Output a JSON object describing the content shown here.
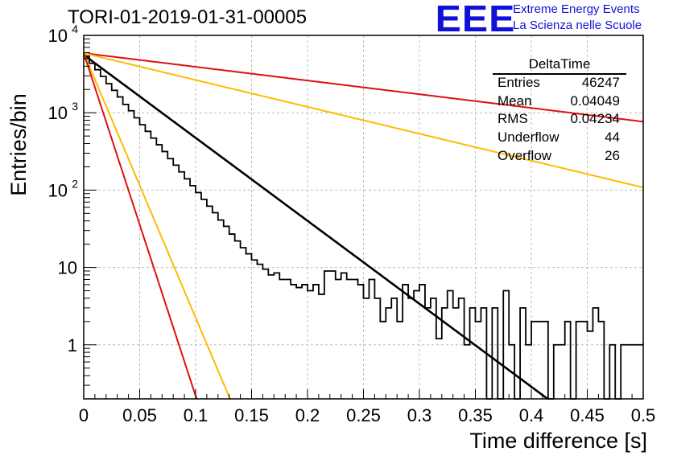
{
  "title": "TORI-01-2019-01-31-00005",
  "logo": {
    "letters": "EEE",
    "line1": "Extreme Energy Events",
    "line2": "La Scienza nelle Scuole"
  },
  "stats_box": {
    "name": "DeltaTime",
    "rows": [
      {
        "label": "Entries",
        "value": "46247"
      },
      {
        "label": "Mean",
        "value": "0.04049"
      },
      {
        "label": "RMS",
        "value": "0.04234"
      },
      {
        "label": "Underflow",
        "value": "44"
      },
      {
        "label": "Overflow",
        "value": "26"
      }
    ]
  },
  "colors": {
    "histogram": "#000000",
    "fit_main": "#000000",
    "curve_red": "#dd1111",
    "curve_yellow": "#ffbb00",
    "grid": "#bbbbbb",
    "logo": "#1010d8"
  },
  "chart_data": {
    "type": "line",
    "xlabel": "Time difference [s]",
    "ylabel": "Entries/bin",
    "xlim": [
      0,
      0.5
    ],
    "ylim": [
      0.2,
      10000
    ],
    "y_scale": "log",
    "grid": true,
    "x_ticks": [
      "0",
      "0.05",
      "0.1",
      "0.15",
      "0.2",
      "0.25",
      "0.3",
      "0.35",
      "0.4",
      "0.45",
      "0.5"
    ],
    "y_ticks": [
      {
        "value": 1,
        "label": "1"
      },
      {
        "value": 10,
        "label": "10"
      },
      {
        "value": 100,
        "label": "10",
        "sup": "2"
      },
      {
        "value": 1000,
        "label": "10",
        "sup": "3"
      },
      {
        "value": 10000,
        "label": "10",
        "sup": "4"
      }
    ],
    "histogram": {
      "bin_width": 0.005,
      "x_start": 0,
      "counts": [
        5400,
        4350,
        3600,
        2950,
        2380,
        1950,
        1600,
        1280,
        1060,
        860,
        700,
        575,
        470,
        385,
        315,
        255,
        210,
        172,
        140,
        114,
        93,
        76,
        62,
        51,
        41,
        34,
        27,
        22,
        18,
        15,
        12.5,
        11,
        9.5,
        8,
        8.5,
        7,
        7,
        6,
        5.5,
        6,
        5,
        6,
        4.5,
        9,
        9,
        7,
        8.5,
        7,
        7,
        6,
        4,
        7,
        4,
        2,
        3,
        4,
        2,
        6,
        4,
        5,
        6,
        3,
        4,
        1.2,
        3,
        5,
        3,
        4,
        1,
        3,
        2,
        3,
        0.2,
        3,
        0.2,
        5,
        1,
        0.2,
        3,
        1,
        2,
        2,
        2,
        0.2,
        1,
        1,
        2,
        0.2,
        2,
        2,
        1.5,
        3,
        2,
        0.2,
        1,
        0.2,
        1,
        1,
        1,
        1
      ]
    },
    "series": [
      {
        "type": "exponential",
        "color": "black",
        "a": 5600,
        "tau": 0.04049,
        "x_range": [
          0,
          0.42
        ]
      },
      {
        "type": "exponential",
        "color": "red",
        "a": 5900,
        "tau": 0.245,
        "x_range": [
          0,
          0.5
        ]
      },
      {
        "type": "exponential",
        "color": "yellow",
        "a": 5900,
        "tau": 0.125,
        "x_range": [
          0,
          0.5
        ]
      },
      {
        "type": "exponential",
        "color": "yellow",
        "a": 5900,
        "tau": 0.0127,
        "x_range": [
          0,
          0.5
        ]
      },
      {
        "type": "exponential",
        "color": "red",
        "a": 5900,
        "tau": 0.0098,
        "x_range": [
          0,
          0.5
        ]
      }
    ]
  }
}
